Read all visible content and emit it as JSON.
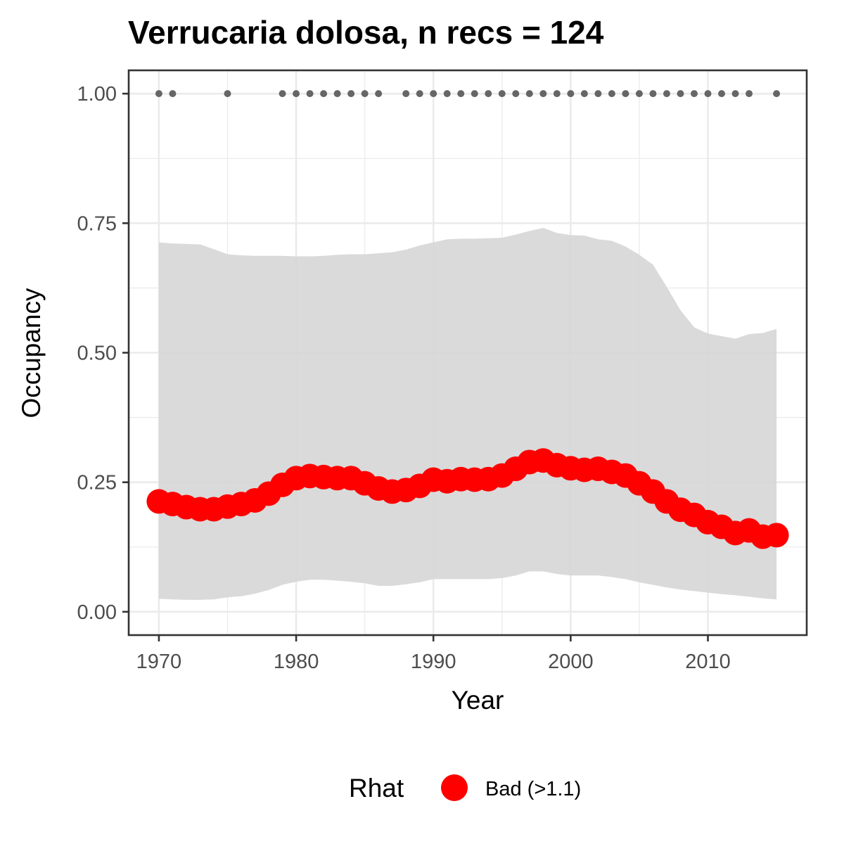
{
  "chart_data": {
    "type": "line",
    "title": "Verrucaria dolosa, n recs = 124",
    "xlabel": "Year",
    "ylabel": "Occupancy",
    "xlim": [
      1967.8,
      2017.2
    ],
    "ylim": [
      -0.045,
      1.045
    ],
    "x_ticks": [
      1970,
      1980,
      1990,
      2000,
      2010
    ],
    "x_tick_labels": [
      "1970",
      "1980",
      "1990",
      "2000",
      "2010"
    ],
    "y_ticks": [
      0,
      0.25,
      0.5,
      0.75,
      1.0
    ],
    "y_tick_labels": [
      "0.00",
      "0.25",
      "0.50",
      "0.75",
      "1.00"
    ],
    "grid": true,
    "legend": {
      "title": "Rhat",
      "position": "bottom",
      "entries": [
        {
          "label": "Bad (>1.1)",
          "color": "#ff0000"
        }
      ]
    },
    "colors": {
      "line": "#ff0000",
      "band": "#d6d6d6",
      "records": "#666666",
      "grid": "#ebebeb",
      "panel_border": "#333333"
    },
    "series": [
      {
        "name": "Bad (>1.1)",
        "x": [
          1970,
          1971,
          1972,
          1973,
          1974,
          1975,
          1976,
          1977,
          1978,
          1979,
          1980,
          1981,
          1982,
          1983,
          1984,
          1985,
          1986,
          1987,
          1988,
          1989,
          1990,
          1991,
          1992,
          1993,
          1994,
          1995,
          1996,
          1997,
          1998,
          1999,
          2000,
          2001,
          2002,
          2003,
          2004,
          2005,
          2006,
          2007,
          2008,
          2009,
          2010,
          2011,
          2012,
          2013,
          2014,
          2015
        ],
        "mean": [
          0.213,
          0.208,
          0.202,
          0.198,
          0.198,
          0.203,
          0.208,
          0.215,
          0.228,
          0.245,
          0.258,
          0.262,
          0.26,
          0.258,
          0.258,
          0.248,
          0.238,
          0.232,
          0.235,
          0.243,
          0.255,
          0.252,
          0.256,
          0.255,
          0.256,
          0.263,
          0.276,
          0.289,
          0.292,
          0.283,
          0.277,
          0.274,
          0.276,
          0.27,
          0.263,
          0.248,
          0.232,
          0.213,
          0.197,
          0.187,
          0.173,
          0.164,
          0.152,
          0.157,
          0.145,
          0.148
        ],
        "lower": [
          0.025,
          0.024,
          0.023,
          0.023,
          0.024,
          0.028,
          0.03,
          0.035,
          0.042,
          0.052,
          0.058,
          0.062,
          0.062,
          0.06,
          0.058,
          0.055,
          0.05,
          0.05,
          0.053,
          0.057,
          0.063,
          0.063,
          0.063,
          0.063,
          0.063,
          0.065,
          0.07,
          0.078,
          0.078,
          0.073,
          0.07,
          0.07,
          0.07,
          0.067,
          0.063,
          0.057,
          0.052,
          0.047,
          0.043,
          0.04,
          0.037,
          0.034,
          0.032,
          0.029,
          0.026,
          0.024
        ],
        "upper": [
          0.713,
          0.711,
          0.71,
          0.709,
          0.7,
          0.69,
          0.688,
          0.687,
          0.687,
          0.687,
          0.686,
          0.686,
          0.687,
          0.689,
          0.69,
          0.69,
          0.692,
          0.694,
          0.699,
          0.707,
          0.713,
          0.719,
          0.72,
          0.72,
          0.721,
          0.722,
          0.728,
          0.735,
          0.741,
          0.731,
          0.727,
          0.726,
          0.719,
          0.716,
          0.705,
          0.689,
          0.67,
          0.627,
          0.582,
          0.549,
          0.537,
          0.532,
          0.527,
          0.536,
          0.538,
          0.546
        ]
      }
    ],
    "records": {
      "y": 1.0,
      "x": [
        1970,
        1971,
        1975,
        1979,
        1980,
        1981,
        1982,
        1983,
        1984,
        1985,
        1986,
        1988,
        1989,
        1990,
        1991,
        1992,
        1993,
        1994,
        1995,
        1996,
        1997,
        1998,
        1999,
        2000,
        2001,
        2002,
        2003,
        2004,
        2005,
        2006,
        2007,
        2008,
        2009,
        2010,
        2011,
        2012,
        2013,
        2015
      ]
    }
  }
}
